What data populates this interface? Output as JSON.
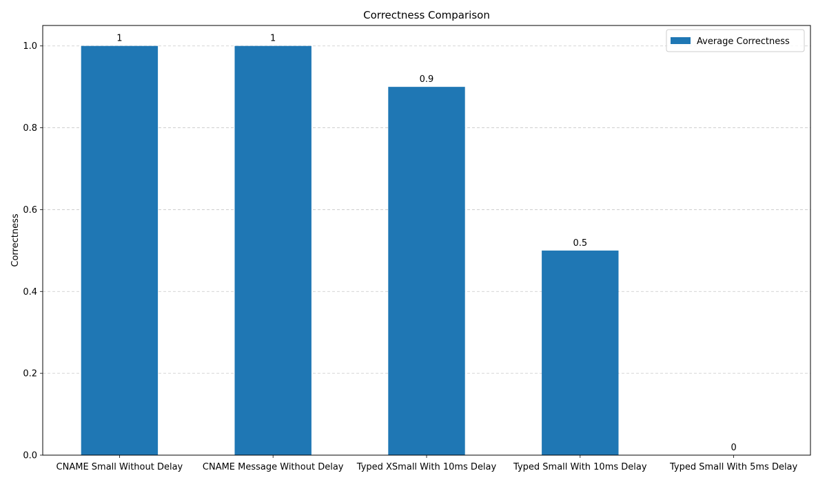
{
  "chart_data": {
    "type": "bar",
    "title": "Correctness Comparison",
    "xlabel": "",
    "ylabel": "Correctness",
    "categories": [
      "CNAME Small Without Delay",
      "CNAME Message Without Delay",
      "Typed XSmall With 10ms Delay",
      "Typed Small With 10ms Delay",
      "Typed Small With 5ms Delay"
    ],
    "series": [
      {
        "name": "Average Correctness",
        "values": [
          1,
          1,
          0.9,
          0.5,
          0
        ],
        "color": "#1f77b4"
      }
    ],
    "data_labels": [
      "1",
      "1",
      "0.9",
      "0.5",
      "0"
    ],
    "ylim": [
      0,
      1.05
    ],
    "yticks": [
      0.0,
      0.2,
      0.4,
      0.6,
      0.8,
      1.0
    ],
    "ytick_labels": [
      "0.0",
      "0.2",
      "0.4",
      "0.6",
      "0.8",
      "1.0"
    ],
    "grid": "y-dashed",
    "legend_position": "top-right"
  }
}
